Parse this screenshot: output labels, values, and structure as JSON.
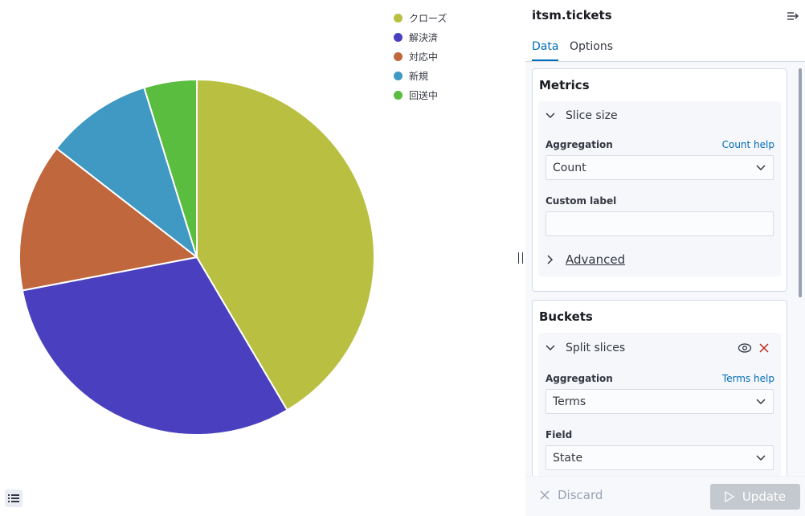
{
  "sidebar": {
    "title": "itsm.tickets",
    "tabs": [
      {
        "label": "Data"
      },
      {
        "label": "Options"
      }
    ],
    "metrics": {
      "title": "Metrics",
      "agg_title": "Slice size",
      "aggregation_label": "Aggregation",
      "help_link": "Count help",
      "aggregation_value": "Count",
      "custom_label": "Custom label",
      "custom_label_value": "",
      "advanced": "Advanced"
    },
    "buckets": {
      "title": "Buckets",
      "agg_title": "Split slices",
      "aggregation_label": "Aggregation",
      "help_link": "Terms help",
      "aggregation_value": "Terms",
      "field_label": "Field",
      "field_value": "State"
    },
    "footer": {
      "discard": "Discard",
      "update": "Update"
    }
  },
  "chart_data": {
    "type": "pie",
    "title": "",
    "legend_position": "top-right",
    "slices": [
      {
        "label": "クローズ",
        "value": 41.5,
        "color": "#b9c041"
      },
      {
        "label": "解決済",
        "value": 30.5,
        "color": "#4a3fbe"
      },
      {
        "label": "対応中",
        "value": 13.5,
        "color": "#c0673e"
      },
      {
        "label": "新規",
        "value": 9.7,
        "color": "#3f99c2"
      },
      {
        "label": "回送中",
        "value": 4.8,
        "color": "#5bbd40"
      }
    ]
  }
}
